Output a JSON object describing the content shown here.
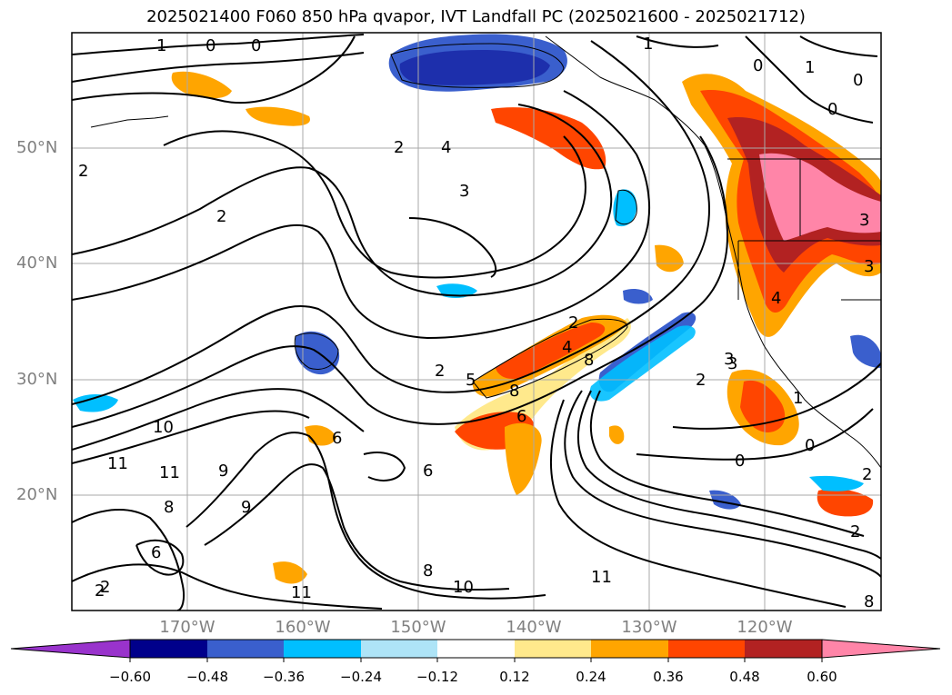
{
  "title": "2025021400 F060 850 hPa qvapor, IVT Landfall PC (2025021600 - 2025021712)",
  "lat_labels": [
    "50°N",
    "40°N",
    "30°N",
    "20°N"
  ],
  "lon_labels": [
    "170°W",
    "160°W",
    "150°W",
    "140°W",
    "130°W",
    "120°W"
  ],
  "contour_labels": [
    "1",
    "0",
    "0",
    "1",
    "0",
    "1",
    "0",
    "2",
    "4",
    "3",
    "2",
    "2",
    "2",
    "2",
    "3",
    "3",
    "3",
    "4",
    "2",
    "2",
    "5",
    "4",
    "8",
    "6",
    "8",
    "2",
    "3",
    "1",
    "0",
    "0",
    "0",
    "10",
    "11",
    "11",
    "9",
    "9",
    "8",
    "8",
    "6",
    "6",
    "10",
    "11",
    "11",
    "2",
    "6",
    "2",
    "8"
  ],
  "colorbar": {
    "ticks": [
      "−0.60",
      "−0.48",
      "−0.36",
      "−0.24",
      "−0.12",
      "0.12",
      "0.24",
      "0.36",
      "0.48",
      "0.60"
    ],
    "colors": [
      "#9933cc",
      "#00008b",
      "#3a5fcd",
      "#00bfff",
      "#aee4f7",
      "#ffffff",
      "#ffe98c",
      "#ffa500",
      "#ff4500",
      "#b22222",
      "#ff85a8"
    ]
  }
}
